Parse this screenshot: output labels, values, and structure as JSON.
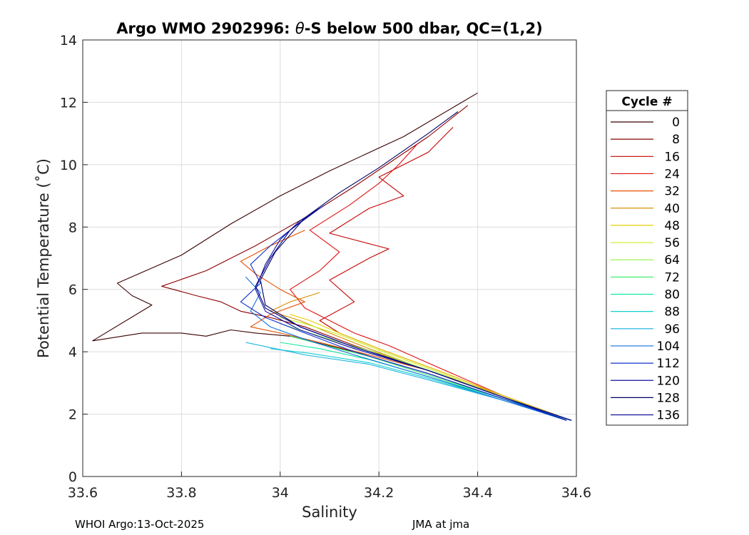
{
  "chart_data": {
    "type": "line",
    "title": "Argo WMO 2902996: θ-S below 500 dbar,  QC=(1,2)",
    "title_prefix": "Argo WMO 2902996: ",
    "title_theta": "θ",
    "title_suffix": "-S below 500 dbar,  QC=(1,2)",
    "xlabel": "Salinity",
    "ylabel": "Potential Temperature (˚C)",
    "xlim": [
      33.6,
      34.6
    ],
    "ylim": [
      0,
      14
    ],
    "xticks": [
      33.6,
      33.8,
      34.0,
      34.2,
      34.4,
      34.6
    ],
    "xtick_labels": [
      "33.6",
      "33.8",
      "34",
      "34.2",
      "34.4",
      "34.6"
    ],
    "yticks": [
      0,
      2,
      4,
      6,
      8,
      10,
      12,
      14
    ],
    "ytick_labels": [
      "0",
      "2",
      "4",
      "6",
      "8",
      "10",
      "12",
      "14"
    ],
    "grid": true,
    "legend": {
      "title": "Cycle #",
      "placement": "outside-right",
      "entries": [
        {
          "label": "0",
          "color": "#3a0000"
        },
        {
          "label": "8",
          "color": "#8b0000"
        },
        {
          "label": "16",
          "color": "#c40000"
        },
        {
          "label": "24",
          "color": "#e01010"
        },
        {
          "label": "32",
          "color": "#e85000"
        },
        {
          "label": "40",
          "color": "#d89000"
        },
        {
          "label": "48",
          "color": "#e8d000"
        },
        {
          "label": "56",
          "color": "#c8f020"
        },
        {
          "label": "64",
          "color": "#90f040"
        },
        {
          "label": "72",
          "color": "#40f070"
        },
        {
          "label": "80",
          "color": "#10e8a0"
        },
        {
          "label": "88",
          "color": "#10d0d0"
        },
        {
          "label": "96",
          "color": "#10b0e0"
        },
        {
          "label": "104",
          "color": "#1070e0"
        },
        {
          "label": "112",
          "color": "#1030d0"
        },
        {
          "label": "120",
          "color": "#1010a0"
        },
        {
          "label": "128",
          "color": "#000060"
        },
        {
          "label": "136",
          "color": "#000090"
        }
      ]
    },
    "series": [
      {
        "name": "0",
        "color": "#3a0000",
        "x": [
          34.59,
          34.45,
          34.3,
          34.15,
          34.02,
          33.95,
          33.9,
          33.85,
          33.8,
          33.72,
          33.62,
          33.74,
          33.7,
          33.67,
          33.8,
          33.9,
          34.0,
          34.1,
          34.25,
          34.4
        ],
        "y": [
          1.8,
          2.5,
          3.3,
          4.0,
          4.5,
          4.6,
          4.7,
          4.5,
          4.6,
          4.6,
          4.35,
          5.5,
          5.8,
          6.2,
          7.1,
          8.1,
          9.0,
          9.8,
          10.9,
          12.3
        ]
      },
      {
        "name": "8",
        "color": "#8b0000",
        "x": [
          34.58,
          34.45,
          34.3,
          34.15,
          34.05,
          33.98,
          33.92,
          33.88,
          33.83,
          33.76,
          33.85,
          33.95,
          34.05,
          34.15,
          34.3,
          34.38
        ],
        "y": [
          1.85,
          2.6,
          3.4,
          4.2,
          4.8,
          5.1,
          5.3,
          5.6,
          5.8,
          6.1,
          6.6,
          7.4,
          8.3,
          9.3,
          10.9,
          11.9
        ]
      },
      {
        "name": "16",
        "color": "#c40000",
        "x": [
          34.58,
          34.45,
          34.32,
          34.2,
          34.12,
          34.08,
          34.15,
          34.1,
          34.18,
          34.22,
          34.1,
          34.18,
          34.25,
          34.2,
          34.3,
          34.35
        ],
        "y": [
          1.85,
          2.6,
          3.4,
          4.1,
          4.6,
          5.0,
          5.6,
          6.3,
          7.0,
          7.3,
          7.8,
          8.6,
          9.0,
          9.6,
          10.4,
          11.2
        ]
      },
      {
        "name": "24",
        "color": "#e01010",
        "x": [
          34.58,
          34.45,
          34.32,
          34.22,
          34.15,
          34.1,
          34.05,
          34.02,
          34.08,
          34.12,
          34.06,
          34.14,
          34.2,
          34.24,
          34.28
        ],
        "y": [
          1.85,
          2.6,
          3.5,
          4.2,
          4.6,
          5.0,
          5.4,
          6.0,
          6.6,
          7.2,
          7.9,
          8.7,
          9.4,
          10.0,
          10.7
        ]
      },
      {
        "name": "32",
        "color": "#e85000",
        "x": [
          34.58,
          34.45,
          34.3,
          34.18,
          34.08,
          34.0,
          33.94,
          33.98,
          34.05,
          34.0,
          33.95,
          33.92,
          33.98,
          34.05
        ],
        "y": [
          1.85,
          2.6,
          3.4,
          3.9,
          4.3,
          4.6,
          4.8,
          5.2,
          5.6,
          6.0,
          6.5,
          6.9,
          7.4,
          7.9
        ]
      },
      {
        "name": "40",
        "color": "#d89000",
        "x": [
          34.58,
          34.45,
          34.3,
          34.18,
          34.1,
          34.04,
          33.98,
          34.02,
          34.08
        ],
        "y": [
          1.85,
          2.6,
          3.4,
          4.1,
          4.6,
          5.0,
          5.3,
          5.6,
          5.9
        ]
      },
      {
        "name": "48",
        "color": "#e8d000",
        "x": [
          34.58,
          34.45,
          34.32,
          34.2,
          34.12,
          34.06,
          34.02
        ],
        "y": [
          1.85,
          2.6,
          3.4,
          4.1,
          4.6,
          5.0,
          5.2
        ]
      },
      {
        "name": "56",
        "color": "#c8f020",
        "x": [
          34.58,
          34.45,
          34.32,
          34.2,
          34.12,
          34.05,
          34.0
        ],
        "y": [
          1.8,
          2.55,
          3.35,
          4.05,
          4.55,
          4.9,
          5.1
        ]
      },
      {
        "name": "64",
        "color": "#90f040",
        "x": [
          34.59,
          34.45,
          34.32,
          34.2,
          34.1,
          34.04,
          34.0
        ],
        "y": [
          1.8,
          2.55,
          3.3,
          3.95,
          4.4,
          4.7,
          4.9
        ]
      },
      {
        "name": "72",
        "color": "#40f070",
        "x": [
          34.59,
          34.45,
          34.3,
          34.18,
          34.08,
          34.02
        ],
        "y": [
          1.8,
          2.5,
          3.25,
          3.85,
          4.25,
          4.5
        ]
      },
      {
        "name": "80",
        "color": "#10e8a0",
        "x": [
          34.59,
          34.45,
          34.3,
          34.18,
          34.08,
          34.0
        ],
        "y": [
          1.8,
          2.5,
          3.2,
          3.75,
          4.1,
          4.3
        ]
      },
      {
        "name": "88",
        "color": "#10d0d0",
        "x": [
          34.59,
          34.45,
          34.3,
          34.18,
          34.06,
          33.98
        ],
        "y": [
          1.8,
          2.45,
          3.15,
          3.65,
          3.95,
          4.1
        ]
      },
      {
        "name": "96",
        "color": "#10b0e0",
        "x": [
          34.59,
          34.45,
          34.3,
          34.18,
          34.05,
          33.93
        ],
        "y": [
          1.8,
          2.45,
          3.1,
          3.6,
          3.9,
          4.3
        ]
      },
      {
        "name": "104",
        "color": "#1070e0",
        "x": [
          34.58,
          34.45,
          34.3,
          34.15,
          34.05,
          33.98,
          33.94,
          33.96,
          33.93
        ],
        "y": [
          1.8,
          2.45,
          3.2,
          3.9,
          4.4,
          4.8,
          5.3,
          5.9,
          6.4
        ]
      },
      {
        "name": "112",
        "color": "#1030d0",
        "x": [
          34.58,
          34.45,
          34.3,
          34.15,
          34.05,
          33.97,
          33.92,
          33.96,
          33.94,
          33.98,
          34.02,
          34.06
        ],
        "y": [
          1.8,
          2.5,
          3.3,
          4.0,
          4.6,
          5.1,
          5.6,
          6.2,
          6.8,
          7.4,
          7.9,
          8.4
        ]
      },
      {
        "name": "120",
        "color": "#1010a0",
        "x": [
          34.58,
          34.45,
          34.3,
          34.15,
          34.04,
          33.97,
          33.95,
          33.97,
          34.0,
          34.04,
          34.09
        ],
        "y": [
          1.8,
          2.55,
          3.4,
          4.1,
          4.7,
          5.3,
          6.0,
          6.8,
          7.6,
          8.2,
          8.7
        ]
      },
      {
        "name": "128",
        "color": "#000060",
        "x": [
          34.59,
          34.45,
          34.3,
          34.15,
          34.04,
          33.97,
          33.96,
          33.99,
          34.05,
          34.12,
          34.2,
          34.3,
          34.36
        ],
        "y": [
          1.8,
          2.55,
          3.4,
          4.15,
          4.8,
          5.5,
          6.3,
          7.2,
          8.3,
          9.1,
          9.9,
          11.0,
          11.7
        ]
      },
      {
        "name": "136",
        "color": "#000090",
        "x": [
          34.59,
          34.45,
          34.3,
          34.15,
          34.04,
          33.97,
          33.95,
          33.98,
          34.02,
          34.08
        ],
        "y": [
          1.8,
          2.55,
          3.4,
          4.15,
          4.8,
          5.4,
          6.1,
          7.0,
          7.9,
          8.6
        ]
      }
    ]
  },
  "footer": {
    "left": "WHOI Argo:13-Oct-2025",
    "right": "JMA at jma"
  }
}
